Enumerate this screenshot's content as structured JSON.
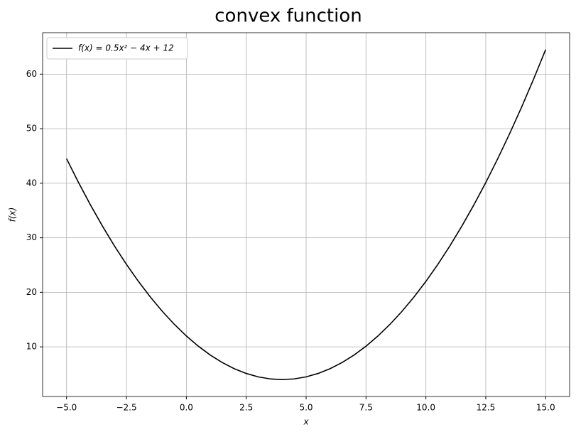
{
  "chart_data": {
    "type": "line",
    "title": "convex function",
    "x_label": "x",
    "y_label": "f(x)",
    "x": [
      -5,
      -4.5,
      -4,
      -3.5,
      -3,
      -2.5,
      -2,
      -1.5,
      -1,
      -0.5,
      0,
      0.5,
      1,
      1.5,
      2,
      2.5,
      3,
      3.5,
      4,
      4.5,
      5,
      5.5,
      6,
      6.5,
      7,
      7.5,
      8,
      8.5,
      9,
      9.5,
      10,
      10.5,
      11,
      11.5,
      12,
      12.5,
      13,
      13.5,
      14,
      14.5,
      15
    ],
    "series": [
      {
        "name": "f(x) = 0.5x² − 4x + 12",
        "color": "#000000",
        "values": [
          44.5,
          40.125,
          36,
          32.125,
          28.5,
          25.125,
          22,
          19.125,
          16.5,
          14.125,
          12,
          10.125,
          8.5,
          7.125,
          6,
          5.125,
          4.5,
          4.125,
          4,
          4.125,
          4.5,
          5.125,
          6,
          7.125,
          8.5,
          10.125,
          12,
          14.125,
          16.5,
          19.125,
          22,
          25.125,
          28.5,
          32.125,
          36,
          40.125,
          44.5,
          49.125,
          54,
          59.125,
          64.5
        ]
      }
    ],
    "xlim": [
      -6,
      16
    ],
    "ylim": [
      0.9,
      67.6
    ],
    "xticks": [
      {
        "value": -5,
        "label": "−5.0"
      },
      {
        "value": -2.5,
        "label": "−2.5"
      },
      {
        "value": 0,
        "label": "0.0"
      },
      {
        "value": 2.5,
        "label": "2.5"
      },
      {
        "value": 5,
        "label": "5.0"
      },
      {
        "value": 7.5,
        "label": "7.5"
      },
      {
        "value": 10,
        "label": "10.0"
      },
      {
        "value": 12.5,
        "label": "12.5"
      },
      {
        "value": 15,
        "label": "15.0"
      }
    ],
    "yticks": [
      10,
      20,
      30,
      40,
      50,
      60
    ],
    "grid": true,
    "legend": "upper left"
  }
}
